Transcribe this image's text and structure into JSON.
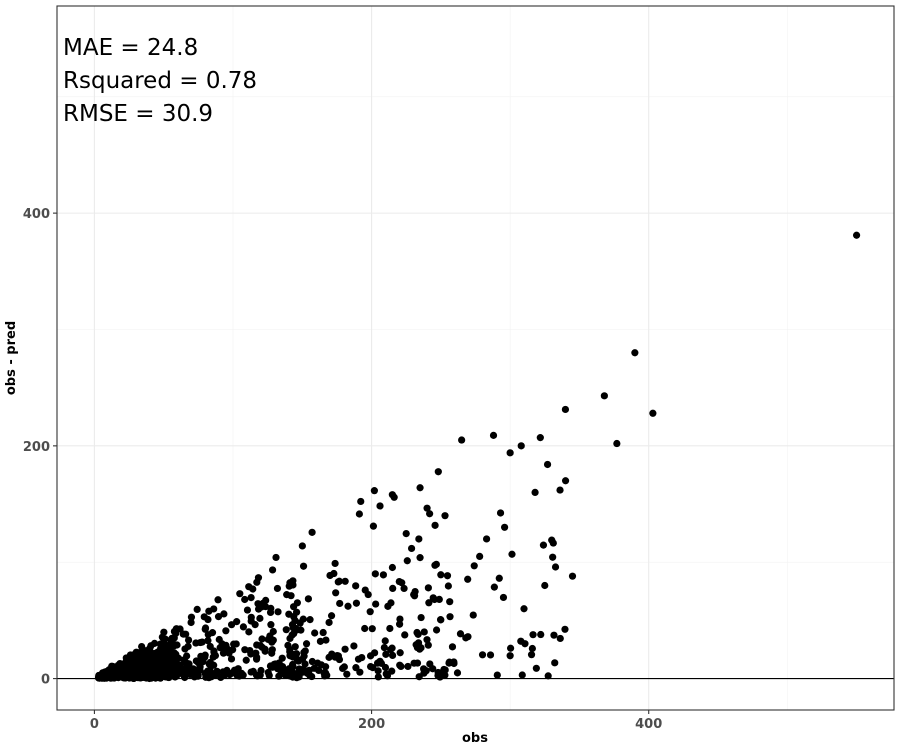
{
  "chart_data": {
    "type": "scatter",
    "title": "",
    "xlabel": "obs",
    "ylabel": "obs - pred",
    "xlim": [
      -27,
      577
    ],
    "ylim": [
      -27,
      578
    ],
    "x_ticks": [
      0,
      200,
      400
    ],
    "x_tick_labels": [
      "0",
      "200",
      "400"
    ],
    "y_ticks": [
      0,
      200,
      400
    ],
    "y_tick_labels": [
      "0",
      "200",
      "400"
    ],
    "x_minor_grid": [
      100,
      300,
      500
    ],
    "y_minor_grid": [
      100,
      300,
      500
    ],
    "grid": true,
    "legend": "none",
    "reference_line_y": 0,
    "point_color": "#000000",
    "annotations": [
      "MAE = 24.8",
      "Rsquared = 0.78",
      "RMSE = 30.9"
    ],
    "outlier_points": {
      "x": [
        550,
        390,
        403,
        368,
        377,
        265,
        288,
        308,
        327,
        340,
        345,
        325,
        310,
        330,
        268,
        300,
        318,
        336,
        283,
        253,
        235,
        215,
        296,
        278
      ],
      "y": [
        381,
        280,
        228,
        243,
        202,
        205,
        209,
        200,
        184,
        170,
        88,
        80,
        60,
        119,
        35,
        194,
        160,
        162,
        120,
        140,
        164,
        158,
        130,
        105
      ]
    },
    "clusters": [
      {
        "x_min": 3,
        "x_max": 60,
        "slope": 0.45,
        "count": 520
      },
      {
        "x_min": 30,
        "x_max": 150,
        "slope": 0.5,
        "count": 330
      },
      {
        "x_min": 140,
        "x_max": 260,
        "slope": 0.5,
        "count": 170
      },
      {
        "x_min": 220,
        "x_max": 340,
        "slope": 0.5,
        "count": 60
      }
    ]
  }
}
